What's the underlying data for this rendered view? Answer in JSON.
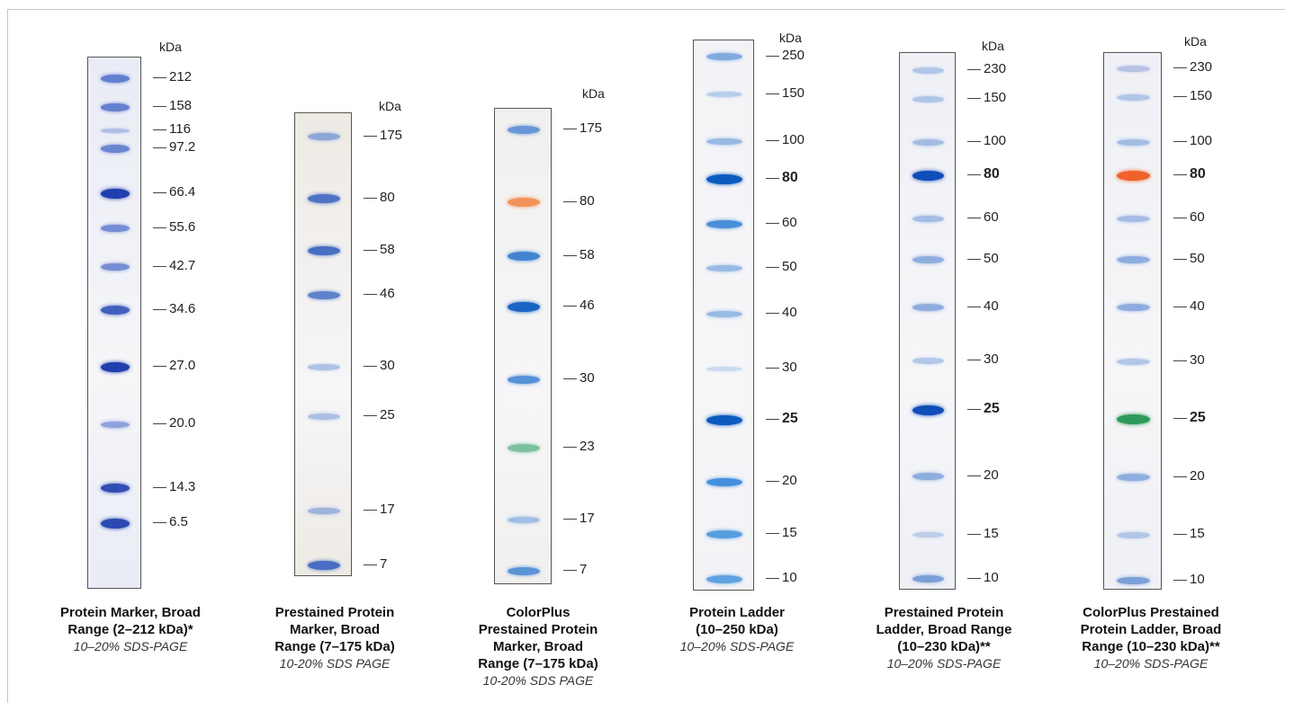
{
  "kda_label": "kDa",
  "panels": [
    {
      "id": "p1",
      "gel_tint": "#e9ecf6",
      "markers": [
        {
          "label": "212",
          "color": "#4a6bc9",
          "strength": 0.75,
          "bold": false
        },
        {
          "label": "158",
          "color": "#4a6bc9",
          "strength": 0.75,
          "bold": false
        },
        {
          "label": "116",
          "color": "#7a93d8",
          "strength": 0.3,
          "bold": false
        },
        {
          "label": "97.2",
          "color": "#4a6bc9",
          "strength": 0.7,
          "bold": false
        },
        {
          "label": "66.4",
          "color": "#1f3fae",
          "strength": 1.0,
          "bold": false
        },
        {
          "label": "55.6",
          "color": "#4a6bc9",
          "strength": 0.6,
          "bold": false
        },
        {
          "label": "42.7",
          "color": "#4a6bc9",
          "strength": 0.6,
          "bold": false
        },
        {
          "label": "34.6",
          "color": "#2e4fb8",
          "strength": 0.85,
          "bold": false
        },
        {
          "label": "27.0",
          "color": "#1f3fae",
          "strength": 1.0,
          "bold": false
        },
        {
          "label": "20.0",
          "color": "#5d7ccf",
          "strength": 0.5,
          "bold": false
        },
        {
          "label": "14.3",
          "color": "#2544b0",
          "strength": 0.9,
          "bold": false
        },
        {
          "label": "6.5",
          "color": "#2544b0",
          "strength": 0.95,
          "bold": false
        }
      ],
      "caption_title": [
        "Protein Marker, Broad",
        "Range (2–212 kDa)*"
      ],
      "caption_note": "10–20% SDS-PAGE"
    },
    {
      "id": "p2",
      "gel_tint": "#eeeae4",
      "markers": [
        {
          "label": "175",
          "color": "#6b8fd0",
          "strength": 0.6,
          "bold": false
        },
        {
          "label": "80",
          "color": "#3e66c0",
          "strength": 0.85,
          "bold": false
        },
        {
          "label": "58",
          "color": "#3e66c0",
          "strength": 0.9,
          "bold": false
        },
        {
          "label": "46",
          "color": "#4b72c6",
          "strength": 0.8,
          "bold": false
        },
        {
          "label": "30",
          "color": "#8aa6da",
          "strength": 0.45,
          "bold": false
        },
        {
          "label": "25",
          "color": "#8aa6da",
          "strength": 0.5,
          "bold": false
        },
        {
          "label": "17",
          "color": "#7c9bd6",
          "strength": 0.55,
          "bold": false
        },
        {
          "label": "7",
          "color": "#3e66c0",
          "strength": 0.9,
          "bold": false
        }
      ],
      "caption_title": [
        "Prestained Protein",
        "Marker, Broad",
        "Range (7–175 kDa)"
      ],
      "caption_note": "10-20% SDS PAGE"
    },
    {
      "id": "p3",
      "gel_tint": "#f1f0ee",
      "markers": [
        {
          "label": "175",
          "color": "#4f86d4",
          "strength": 0.75,
          "bold": false
        },
        {
          "label": "80",
          "color": "#f2884a",
          "strength": 0.85,
          "bold": false
        },
        {
          "label": "58",
          "color": "#2f78cf",
          "strength": 0.85,
          "bold": false
        },
        {
          "label": "46",
          "color": "#1a64c4",
          "strength": 1.0,
          "bold": false
        },
        {
          "label": "30",
          "color": "#3f82d2",
          "strength": 0.8,
          "bold": false
        },
        {
          "label": "23",
          "color": "#5fb58a",
          "strength": 0.7,
          "bold": false
        },
        {
          "label": "17",
          "color": "#7ba7de",
          "strength": 0.5,
          "bold": false
        },
        {
          "label": "7",
          "color": "#3f82d2",
          "strength": 0.75,
          "bold": false
        }
      ],
      "caption_title": [
        "ColorPlus",
        "Prestained Protein",
        "Marker, Broad",
        "Range (7–175 kDa)"
      ],
      "caption_note": "10-20% SDS PAGE"
    },
    {
      "id": "p4",
      "gel_tint": "#f3f3f7",
      "markers": [
        {
          "label": "250",
          "color": "#5a93d8",
          "strength": 0.6,
          "bold": false
        },
        {
          "label": "150",
          "color": "#8ab2e3",
          "strength": 0.35,
          "bold": false
        },
        {
          "label": "100",
          "color": "#6d9edc",
          "strength": 0.5,
          "bold": false
        },
        {
          "label": "80",
          "color": "#0b5bbf",
          "strength": 1.0,
          "bold": true
        },
        {
          "label": "60",
          "color": "#2a7ad4",
          "strength": 0.75,
          "bold": false
        },
        {
          "label": "50",
          "color": "#6d9edc",
          "strength": 0.5,
          "bold": false
        },
        {
          "label": "40",
          "color": "#6d9edc",
          "strength": 0.5,
          "bold": false
        },
        {
          "label": "30",
          "color": "#a8c4ea",
          "strength": 0.3,
          "bold": false
        },
        {
          "label": "25",
          "color": "#0b5bbf",
          "strength": 1.0,
          "bold": true
        },
        {
          "label": "20",
          "color": "#2a82d8",
          "strength": 0.8,
          "bold": false
        },
        {
          "label": "15",
          "color": "#3a8edc",
          "strength": 0.75,
          "bold": false
        },
        {
          "label": "10",
          "color": "#3a8edc",
          "strength": 0.7,
          "bold": false
        }
      ],
      "caption_title": [
        "Protein Ladder",
        "(10–250 kDa)"
      ],
      "caption_note": "10–20% SDS-PAGE"
    },
    {
      "id": "p5",
      "gel_tint": "#eef0f6",
      "markers": [
        {
          "label": "230",
          "color": "#8eaee0",
          "strength": 0.45,
          "bold": false
        },
        {
          "label": "150",
          "color": "#8eaee0",
          "strength": 0.45,
          "bold": false
        },
        {
          "label": "100",
          "color": "#7fa3dc",
          "strength": 0.5,
          "bold": false
        },
        {
          "label": "80",
          "color": "#0f4db8",
          "strength": 1.0,
          "bold": true
        },
        {
          "label": "60",
          "color": "#7fa3dc",
          "strength": 0.5,
          "bold": false
        },
        {
          "label": "50",
          "color": "#6b95d6",
          "strength": 0.6,
          "bold": false
        },
        {
          "label": "40",
          "color": "#6b95d6",
          "strength": 0.6,
          "bold": false
        },
        {
          "label": "30",
          "color": "#8eaee0",
          "strength": 0.45,
          "bold": false
        },
        {
          "label": "25",
          "color": "#0f4db8",
          "strength": 1.0,
          "bold": true
        },
        {
          "label": "20",
          "color": "#6b95d6",
          "strength": 0.6,
          "bold": false
        },
        {
          "label": "15",
          "color": "#9db8e5",
          "strength": 0.4,
          "bold": false
        },
        {
          "label": "10",
          "color": "#5a88d0",
          "strength": 0.65,
          "bold": false
        }
      ],
      "caption_title": [
        "Prestained Protein",
        "Ladder, Broad Range",
        "(10–230 kDa)**"
      ],
      "caption_note": "10–20% SDS-PAGE"
    },
    {
      "id": "p6",
      "gel_tint": "#eff0f5",
      "markers": [
        {
          "label": "230",
          "color": "#9aa8dc",
          "strength": 0.45,
          "bold": false
        },
        {
          "label": "150",
          "color": "#8eaee0",
          "strength": 0.45,
          "bold": false
        },
        {
          "label": "100",
          "color": "#7fa3dc",
          "strength": 0.5,
          "bold": false
        },
        {
          "label": "80",
          "color": "#f0622a",
          "strength": 1.0,
          "bold": true
        },
        {
          "label": "60",
          "color": "#7fa3dc",
          "strength": 0.5,
          "bold": false
        },
        {
          "label": "50",
          "color": "#6b95d6",
          "strength": 0.6,
          "bold": false
        },
        {
          "label": "40",
          "color": "#6b95d6",
          "strength": 0.6,
          "bold": false
        },
        {
          "label": "30",
          "color": "#8eaee0",
          "strength": 0.45,
          "bold": false
        },
        {
          "label": "25",
          "color": "#2e9a5a",
          "strength": 1.0,
          "bold": true
        },
        {
          "label": "20",
          "color": "#6b95d6",
          "strength": 0.6,
          "bold": false
        },
        {
          "label": "15",
          "color": "#8eaee0",
          "strength": 0.45,
          "bold": false
        },
        {
          "label": "10",
          "color": "#5a88d0",
          "strength": 0.65,
          "bold": false
        }
      ],
      "caption_title": [
        "ColorPlus Prestained",
        "Protein Ladder, Broad",
        "Range (10–230 kDa)**"
      ],
      "caption_note": "10–20% SDS-PAGE"
    }
  ]
}
